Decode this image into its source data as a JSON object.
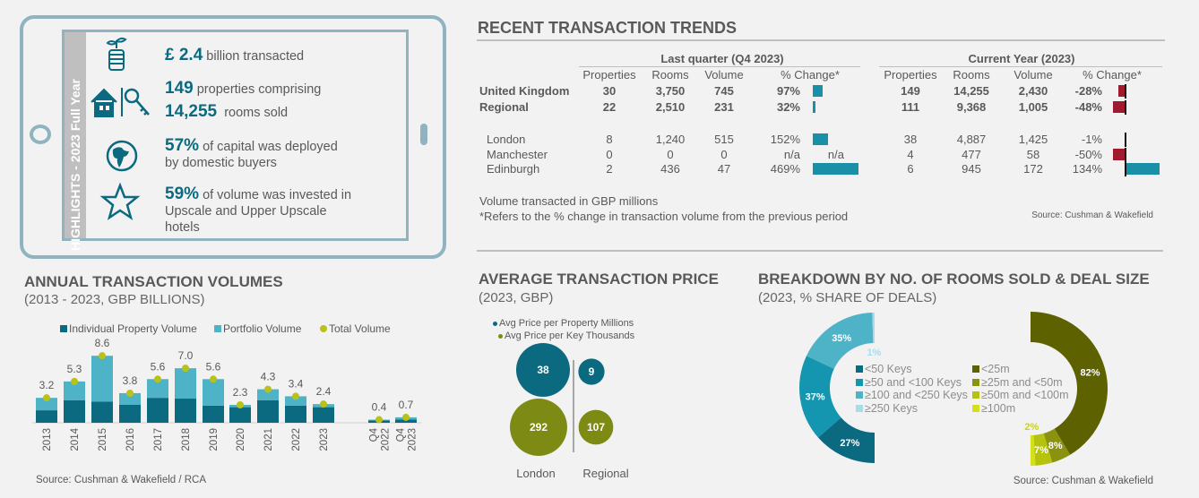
{
  "highlights": {
    "strip_title": "HIGHLIGHTS - 2023 Full Year",
    "items": [
      {
        "icon": "coins-plant-icon",
        "value": "£ 2.4",
        "text": "billion transacted"
      },
      {
        "icon": "house-key-icon",
        "value": "149",
        "text": "properties comprising",
        "value2": "14,255",
        "text2": "rooms sold"
      },
      {
        "icon": "globe-icon",
        "value": "57%",
        "text": "of capital was deployed",
        "text2": "by domestic buyers"
      },
      {
        "icon": "star-icon",
        "value": "59%",
        "text": "of volume was invested in",
        "text2": "Upscale and Upper Upscale",
        "text3": "hotels"
      }
    ]
  },
  "trends": {
    "title": "RECENT TRANSACTION TRENDS",
    "group1": "Last quarter (Q4 2023)",
    "group2": "Current Year (2023)",
    "columns": [
      "Properties",
      "Rooms",
      "Volume",
      "% Change*"
    ],
    "rows": [
      {
        "label": "United Kingdom",
        "bold": true,
        "q": [
          "30",
          "3,750",
          "745",
          "97%"
        ],
        "q_change": 97,
        "y": [
          "149",
          "14,255",
          "2,430",
          "-28%"
        ],
        "y_change": -28
      },
      {
        "label": "Regional",
        "bold": true,
        "q": [
          "22",
          "2,510",
          "231",
          "32%"
        ],
        "q_change": 32,
        "y": [
          "111",
          "9,368",
          "1,005",
          "-48%"
        ],
        "y_change": -48
      },
      {
        "label": "London",
        "bold": false,
        "q": [
          "8",
          "1,240",
          "515",
          "152%"
        ],
        "q_change": 152,
        "y": [
          "38",
          "4,887",
          "1,425",
          "-1%"
        ],
        "y_change": -1
      },
      {
        "label": "Manchester",
        "bold": false,
        "q": [
          "0",
          "0",
          "0",
          "n/a"
        ],
        "q_change": null,
        "q_bar_text": "n/a",
        "y": [
          "4",
          "477",
          "58",
          "-50%"
        ],
        "y_change": -50
      },
      {
        "label": "Edinburgh",
        "bold": false,
        "q": [
          "2",
          "436",
          "47",
          "469%"
        ],
        "q_change": 469,
        "y": [
          "6",
          "945",
          "172",
          "134%"
        ],
        "y_change": 134
      }
    ],
    "note1": "Volume transacted in GBP millions",
    "note2": "*Refers to the % change in transaction volume from the previous period",
    "source": "Source: Cushman & Wakefield",
    "colors": {
      "positive": "#1a8fa8",
      "negative": "#a0192e"
    }
  },
  "chart_data": [
    {
      "type": "bar",
      "title": "ANNUAL TRANSACTION VOLUMES",
      "subtitle": "(2013 - 2023, GBP BILLIONS)",
      "categories": [
        "2013",
        "2014",
        "2015",
        "2016",
        "2017",
        "2018",
        "2019",
        "2020",
        "2021",
        "2022",
        "2023",
        "Q4 2022",
        "Q4 2023"
      ],
      "series": [
        {
          "name": "Individual Property Volume",
          "color": "#0b6a80",
          "values": [
            1.6,
            2.9,
            2.7,
            2.3,
            3.2,
            3.1,
            2.2,
            2.0,
            2.9,
            2.2,
            2.0,
            0.3,
            0.4
          ]
        },
        {
          "name": "Portfolio Volume",
          "color": "#4fb3c8",
          "values": [
            1.6,
            2.4,
            5.9,
            1.5,
            2.4,
            3.9,
            3.4,
            0.3,
            1.4,
            1.2,
            0.4,
            0.1,
            0.3
          ]
        },
        {
          "name": "Total Volume",
          "color": "#b8c21a",
          "values": [
            3.2,
            5.3,
            8.6,
            3.8,
            5.6,
            7.0,
            5.6,
            2.3,
            4.3,
            3.4,
            2.4,
            0.4,
            0.7
          ]
        }
      ],
      "stacked": true,
      "legend": "top",
      "source": "Source: Cushman & Wakefield / RCA"
    },
    {
      "type": "bubble",
      "title": "AVERAGE TRANSACTION PRICE",
      "subtitle": "(2023, GBP)",
      "categories": [
        "London",
        "Regional"
      ],
      "series": [
        {
          "name": "Avg Price per Property Millions",
          "color": "#0b6a80",
          "values": [
            38,
            9
          ]
        },
        {
          "name": "Avg Price per Key Thousands",
          "color": "#7d8a13",
          "values": [
            292,
            107
          ]
        }
      ],
      "legend": "top"
    },
    {
      "type": "pie",
      "title": "BREAKDOWN BY NO. OF ROOMS SOLD & DEAL SIZE",
      "subtitle": "(2023, % SHARE OF DEALS)",
      "donuts": [
        {
          "labels": [
            "<50 Keys",
            "≥50 and <100 Keys",
            "≥100 and <250 Keys",
            "≥250 Keys"
          ],
          "values": [
            27,
            37,
            35,
            1
          ],
          "colors": [
            "#0b6a80",
            "#1596b0",
            "#4fb3c8",
            "#a8dce8"
          ]
        },
        {
          "labels": [
            "<25m",
            "≥25m and <50m",
            "≥50m and <100m",
            "≥100m"
          ],
          "values": [
            82,
            8,
            7,
            2
          ],
          "colors": [
            "#5d6100",
            "#8a9210",
            "#b5c20e",
            "#d4e01a"
          ]
        }
      ],
      "source": "Source: Cushman & Wakefield"
    }
  ]
}
